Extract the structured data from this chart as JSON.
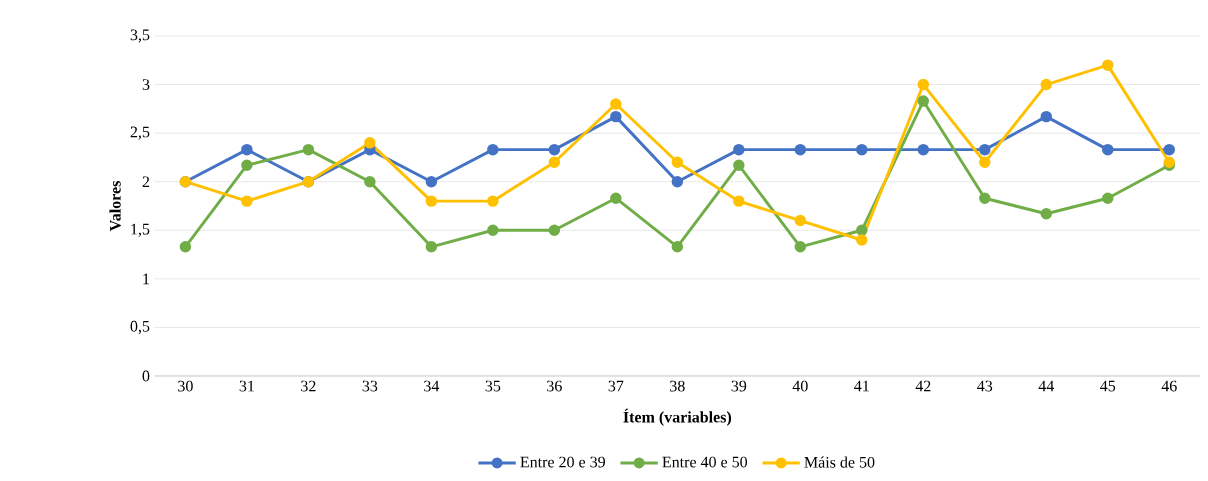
{
  "chart_data": {
    "type": "line",
    "xlabel": "Ítem (variables)",
    "ylabel": "Valores",
    "categories": [
      "30",
      "31",
      "32",
      "33",
      "34",
      "35",
      "36",
      "37",
      "38",
      "39",
      "40",
      "41",
      "42",
      "43",
      "44",
      "45",
      "46"
    ],
    "series": [
      {
        "name": "Entre 20 e 39",
        "color": "#4472c4",
        "values": [
          2,
          2.33,
          2,
          2.33,
          2,
          2.33,
          2.33,
          2.67,
          2,
          2.33,
          2.33,
          2.33,
          2.33,
          2.33,
          2.67,
          2.33,
          2.33
        ]
      },
      {
        "name": "Entre 40 e 50",
        "color": "#70ad47",
        "values": [
          1.33,
          2.17,
          2.33,
          2,
          1.33,
          1.5,
          1.5,
          1.83,
          1.33,
          2.17,
          1.33,
          1.5,
          2.83,
          1.83,
          1.67,
          1.83,
          2.17
        ]
      },
      {
        "name": "Máis de 50",
        "color": "#ffc000",
        "values": [
          2,
          1.8,
          2,
          2.4,
          1.8,
          1.8,
          2.2,
          2.8,
          2.2,
          1.8,
          1.6,
          1.4,
          3,
          2.2,
          3,
          3.2,
          2.2
        ]
      }
    ],
    "ylim": [
      0,
      3.5
    ],
    "yticks": [
      0,
      {
        "value": 0.5,
        "label": "0,5"
      },
      1,
      {
        "value": 1.5,
        "label": "1,5"
      },
      2,
      {
        "value": 2.5,
        "label": "2,5"
      },
      3,
      {
        "value": 3.5,
        "label": "3,5"
      }
    ],
    "grid": "y",
    "legend": "bottom",
    "marker": "circle",
    "line_style": "solid"
  }
}
